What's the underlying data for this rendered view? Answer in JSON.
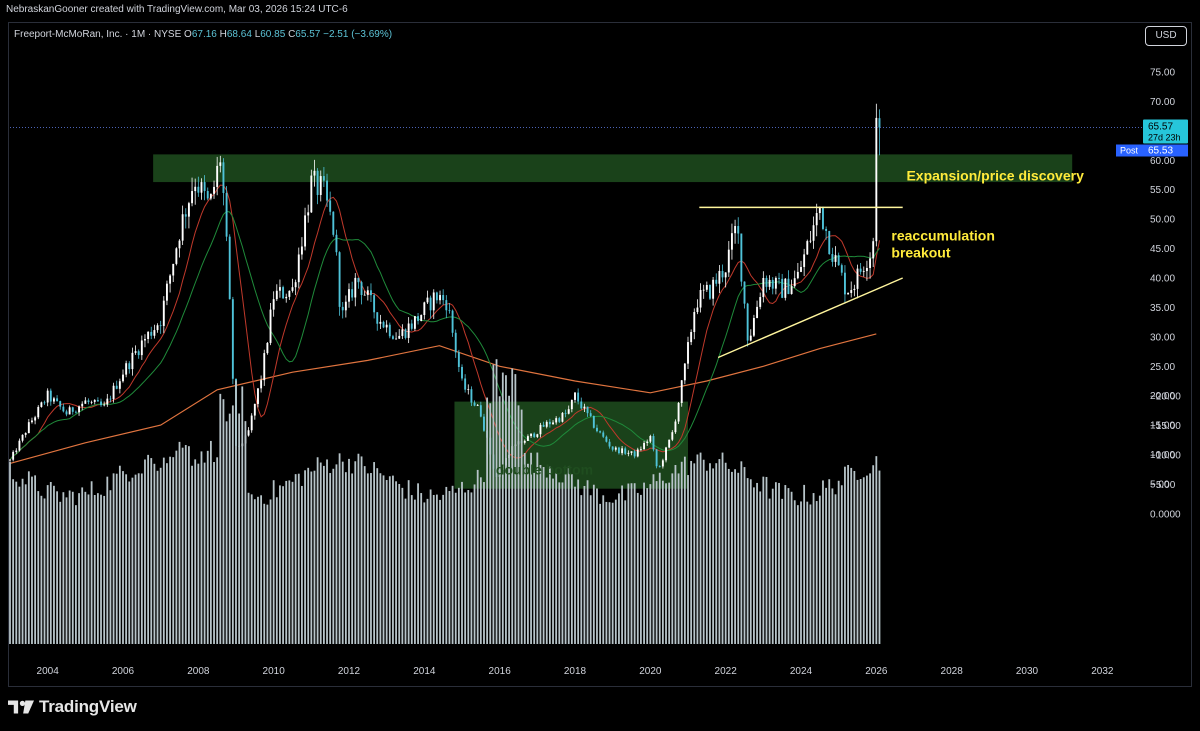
{
  "credit": "NebraskanGooner created with TradingView.com, Mar 03, 2026 15:24 UTC-6",
  "legend": {
    "symbol": "Freeport-McMoRan, Inc. · 1M · NYSE",
    "o_label": "O",
    "o": "67.16",
    "h_label": "H",
    "h": "68.64",
    "l_label": "L",
    "l": "60.85",
    "c_label": "C",
    "c": "65.57",
    "change": "−2.51 (−3.69%)"
  },
  "currency": "USD",
  "brand": "TradingView",
  "price_tags": {
    "last": "65.57",
    "countdown": "27d 23h",
    "post_label": "Post",
    "post": "65.53"
  },
  "chart_data": {
    "type": "candlestick",
    "interval": "1M",
    "x_ticks": [
      "2004",
      "2006",
      "2008",
      "2010",
      "2012",
      "2014",
      "2016",
      "2018",
      "2020",
      "2022",
      "2024",
      "2026",
      "2028",
      "2030",
      "2032"
    ],
    "y_ticks": [
      75,
      70,
      65,
      60,
      55,
      50,
      45,
      40,
      35,
      30,
      25,
      20,
      15,
      10,
      5
    ],
    "y_tick_labels": [
      "75.00",
      "70.00",
      "65.00",
      "60.00",
      "55.00",
      "50.00",
      "45.00",
      "40.00",
      "35.00",
      "30.00",
      "25.00",
      "20.00",
      "15.00",
      "10.00",
      "5.00"
    ],
    "ylim": [
      0,
      80
    ],
    "volume_ticks": [
      0,
      -5,
      -10,
      -15,
      -20
    ],
    "volume_tick_labels": [
      "0.0000",
      "−5.00",
      "−10.00",
      "−15.00",
      "−20.00"
    ],
    "close_anchors": [
      [
        2003.0,
        9
      ],
      [
        2003.5,
        15
      ],
      [
        2004.0,
        20
      ],
      [
        2004.5,
        17
      ],
      [
        2005.0,
        19
      ],
      [
        2005.5,
        18
      ],
      [
        2006.0,
        24
      ],
      [
        2006.5,
        29
      ],
      [
        2007.0,
        33
      ],
      [
        2007.5,
        48
      ],
      [
        2007.9,
        57
      ],
      [
        2008.3,
        52
      ],
      [
        2008.6,
        61
      ],
      [
        2008.8,
        40
      ],
      [
        2009.0,
        11
      ],
      [
        2009.3,
        13
      ],
      [
        2009.7,
        24
      ],
      [
        2010.0,
        37
      ],
      [
        2010.5,
        38
      ],
      [
        2011.0,
        56
      ],
      [
        2011.3,
        55
      ],
      [
        2011.6,
        48
      ],
      [
        2011.8,
        33
      ],
      [
        2012.2,
        40
      ],
      [
        2012.8,
        33
      ],
      [
        2013.3,
        30
      ],
      [
        2013.8,
        33
      ],
      [
        2014.3,
        37
      ],
      [
        2014.6,
        36
      ],
      [
        2015.0,
        22
      ],
      [
        2015.5,
        17
      ],
      [
        2015.9,
        6
      ],
      [
        2016.3,
        11
      ],
      [
        2016.8,
        13
      ],
      [
        2017.2,
        15
      ],
      [
        2017.8,
        17
      ],
      [
        2018.0,
        20
      ],
      [
        2018.6,
        14
      ],
      [
        2019.0,
        11
      ],
      [
        2019.6,
        10
      ],
      [
        2020.0,
        13
      ],
      [
        2020.2,
        7
      ],
      [
        2020.6,
        14
      ],
      [
        2020.9,
        24
      ],
      [
        2021.2,
        36
      ],
      [
        2021.6,
        38
      ],
      [
        2022.0,
        42
      ],
      [
        2022.3,
        49
      ],
      [
        2022.6,
        29
      ],
      [
        2023.0,
        40
      ],
      [
        2023.5,
        38
      ],
      [
        2023.9,
        40
      ],
      [
        2024.3,
        48
      ],
      [
        2024.5,
        52
      ],
      [
        2024.8,
        45
      ],
      [
        2025.2,
        38
      ],
      [
        2025.4,
        39
      ],
      [
        2025.7,
        43
      ],
      [
        2025.9,
        45
      ],
      [
        2026.1,
        65.57
      ]
    ],
    "moving_averages": [
      {
        "color": "#c0392b",
        "kind": "fast"
      },
      {
        "color": "#1f8a3a",
        "kind": "medium"
      },
      {
        "color": "#e0743f",
        "kind": "slow",
        "points": [
          [
            2003.0,
            8.5
          ],
          [
            2005.0,
            12
          ],
          [
            2007.0,
            15
          ],
          [
            2008.5,
            21
          ],
          [
            2010.5,
            24
          ],
          [
            2012.5,
            26
          ],
          [
            2014.4,
            28.5
          ],
          [
            2016.0,
            25
          ],
          [
            2018.0,
            22.5
          ],
          [
            2020.0,
            20.5
          ],
          [
            2021.5,
            22.5
          ],
          [
            2023.0,
            25
          ],
          [
            2024.5,
            28
          ],
          [
            2026.0,
            30.5
          ]
        ]
      }
    ],
    "annotations": [
      {
        "type": "zone",
        "label": "",
        "x0": 2006.8,
        "x1": 2031.2,
        "y0": 56.3,
        "y1": 61,
        "color": "#1f4d1f"
      },
      {
        "type": "zone",
        "label": "double bottom",
        "x0": 2014.8,
        "x1": 2021.0,
        "y0": 4.2,
        "y1": 19,
        "color": "#1f4d1f"
      },
      {
        "type": "hline",
        "x0": 2021.3,
        "x1": 2026.7,
        "y": 52,
        "color": "#fff59d"
      },
      {
        "type": "trendline",
        "x0": 2021.8,
        "y0": 26.5,
        "x1": 2026.7,
        "y1": 40,
        "color": "#fff59d"
      },
      {
        "type": "text",
        "label": "Expansion/price discovery",
        "x": 2026.8,
        "y": 56.6,
        "color": "#ffeb3b"
      },
      {
        "type": "text",
        "label": "reaccumulation",
        "x": 2026.4,
        "y": 46.4,
        "color": "#ffeb3b"
      },
      {
        "type": "text",
        "label": "breakout",
        "x": 2026.4,
        "y": 43.5,
        "color": "#ffeb3b"
      }
    ],
    "last_price": 65.57,
    "colors": {
      "up": "#ffffff",
      "down": "#4fc3d9",
      "volume": "#b7c4c9",
      "grid": "#16191f",
      "text": "#d1d4dc",
      "price_line": "#4c63b6"
    },
    "grid": false
  }
}
